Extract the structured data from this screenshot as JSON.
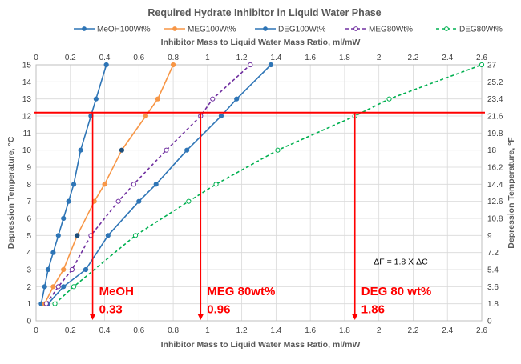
{
  "chart_data": {
    "type": "line",
    "title": "Required Hydrate Inhibitor in Liquid Water Phase",
    "xlabel_top": "Inhibitor Mass to Liquid Water Mass Ratio, ml/mW",
    "xlabel_bottom": "Inhibitor Mass to Liquid Water Mass Ratio, ml/mW",
    "ylabel_left": "Depression Temperature, °C",
    "ylabel_right": "Depression Temperature, °F",
    "xlim": [
      0,
      2.6
    ],
    "ylim": [
      0,
      15
    ],
    "y2lim": [
      0,
      27
    ],
    "x_ticks": [
      "0",
      "0.2",
      "0.4",
      "0.6",
      "0.8",
      "1",
      "1.2",
      "1.4",
      "1.6",
      "1.8",
      "2",
      "2.2",
      "2.4",
      "2.6"
    ],
    "y_ticks": [
      "0",
      "1",
      "2",
      "3",
      "4",
      "5",
      "6",
      "7",
      "8",
      "9",
      "10",
      "11",
      "12",
      "13",
      "14",
      "15"
    ],
    "y2_ticks": [
      "0",
      "1.8",
      "3.6",
      "5.4",
      "7.2",
      "9",
      "10.8",
      "12.6",
      "14.4",
      "16.2",
      "18",
      "19.8",
      "21.6",
      "23.4",
      "25.2",
      "27"
    ],
    "grid": true,
    "legend_position": "top",
    "series": [
      {
        "name": "MeOH100Wt%",
        "color": "#2e75b6",
        "dash": "solid",
        "marker": "filled",
        "x": [
          0.03,
          0.05,
          0.07,
          0.1,
          0.13,
          0.16,
          0.19,
          0.22,
          0.26,
          0.32,
          0.35,
          0.41
        ],
        "y": [
          1,
          2,
          3,
          4,
          5,
          6,
          7,
          8,
          10,
          12,
          13,
          15
        ]
      },
      {
        "name": "MEG100Wt%",
        "color": "#f79646",
        "dash": "solid",
        "marker": "filled",
        "x": [
          0.05,
          0.1,
          0.16,
          0.24,
          0.34,
          0.4,
          0.5,
          0.64,
          0.71,
          0.8
        ],
        "y": [
          1,
          2,
          3,
          5,
          7,
          8,
          10,
          12,
          13,
          15
        ],
        "dark_markers": [
          0.24,
          0.5
        ]
      },
      {
        "name": "DEG100Wt%",
        "color": "#2e75b6",
        "dash": "solid",
        "marker": "filled",
        "x": [
          0.07,
          0.16,
          0.29,
          0.42,
          0.6,
          0.7,
          0.88,
          1.08,
          1.17,
          1.37
        ],
        "y": [
          1,
          2,
          3,
          5,
          7,
          8,
          10,
          12,
          13,
          15
        ]
      },
      {
        "name": "MEG80Wt%",
        "color": "#7030a0",
        "dash": "dashed",
        "marker": "open",
        "x": [
          0.06,
          0.13,
          0.21,
          0.32,
          0.48,
          0.57,
          0.76,
          0.96,
          1.03,
          1.25
        ],
        "y": [
          1,
          2,
          3,
          5,
          7,
          8,
          10,
          12,
          13,
          15
        ]
      },
      {
        "name": "DEG80Wt%",
        "color": "#00b050",
        "dash": "dashed",
        "marker": "open",
        "x": [
          0.11,
          0.22,
          0.58,
          0.89,
          1.05,
          1.41,
          1.86,
          2.06,
          2.6
        ],
        "y": [
          1,
          2,
          5,
          7,
          8,
          10,
          12,
          13,
          15
        ]
      }
    ],
    "reference_line": {
      "y": 12.2,
      "color": "#ff0000"
    },
    "drop_lines": [
      {
        "x": 0.33,
        "color": "#ff0000"
      },
      {
        "x": 0.96,
        "color": "#ff0000"
      },
      {
        "x": 1.86,
        "color": "#ff0000"
      }
    ],
    "annotations": [
      {
        "line1": "MeOH",
        "line2": "0.33",
        "x": 0.33,
        "line1_y": 1.5,
        "line2_y": 0.45
      },
      {
        "line1": "MEG 80wt%",
        "line2": "0.96",
        "x": 0.96,
        "line1_y": 1.5,
        "line2_y": 0.45
      },
      {
        "line1": "DEG 80 wt%",
        "line2": "1.86",
        "x": 1.86,
        "line1_y": 1.5,
        "line2_y": 0.45
      }
    ],
    "note": {
      "text": "ΔF = 1.8 X ΔC",
      "x": 1.97,
      "y": 3.3
    }
  }
}
